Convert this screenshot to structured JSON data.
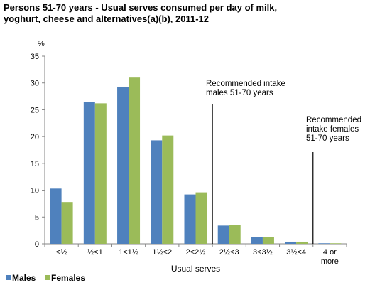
{
  "chart_data": {
    "type": "bar",
    "title_lines": [
      "Persons 51-70 years - Usual serves consumed per day of milk,",
      "yoghurt, cheese and alternatives(a)(b), 2011-12"
    ],
    "ylabel": "%",
    "xlabel": "Usual serves",
    "ylim": [
      0,
      35
    ],
    "yticks": [
      0,
      5,
      10,
      15,
      20,
      25,
      30,
      35
    ],
    "grid": false,
    "legend_position": "bottom-left",
    "categories": [
      [
        "<½"
      ],
      [
        "½<1"
      ],
      [
        "1<1½"
      ],
      [
        "1½<2"
      ],
      [
        "2<2½"
      ],
      [
        "2½<3"
      ],
      [
        "3<3½"
      ],
      [
        "3½<4"
      ],
      [
        "4 or",
        "more"
      ]
    ],
    "series": [
      {
        "name": "Males",
        "color": "#4F81BD",
        "values": [
          10.3,
          26.4,
          29.3,
          19.3,
          9.2,
          3.4,
          1.3,
          0.4,
          0.1
        ]
      },
      {
        "name": "Females",
        "color": "#9BBB59",
        "values": [
          7.8,
          26.2,
          31.0,
          20.2,
          9.6,
          3.5,
          1.2,
          0.4,
          0.1
        ]
      }
    ],
    "annotations": [
      {
        "after_category": 4,
        "lines": [
          "Recommended intake",
          "males 51-70 years"
        ]
      },
      {
        "after_category": 7,
        "lines": [
          "Recommended",
          "intake females",
          "51-70 years"
        ]
      }
    ]
  }
}
